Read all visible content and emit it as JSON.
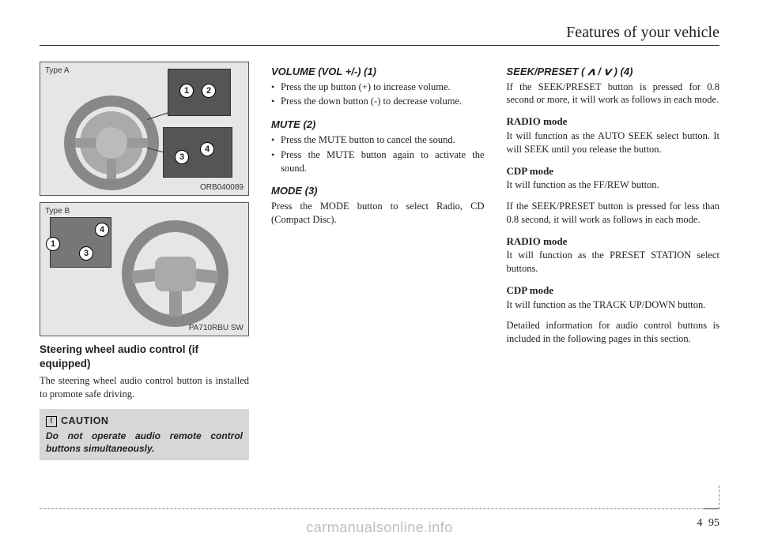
{
  "header": {
    "title": "Features of your vehicle"
  },
  "figures": {
    "a": {
      "type_label": "Type A",
      "code": "ORB040089",
      "callouts": {
        "n1": "1",
        "n2": "2",
        "n3": "3",
        "n4": "4"
      }
    },
    "b": {
      "type_label": "Type B",
      "code": "PA710RBU SW",
      "callouts": {
        "n1": "1",
        "n3": "3",
        "n4": "4"
      }
    }
  },
  "col1": {
    "heading": "Steering wheel audio control (if equipped)",
    "body": "The steering wheel audio control button is installed to promote safe driving.",
    "caution": {
      "label": "CAUTION",
      "text": "Do not operate audio remote control buttons simultaneously."
    }
  },
  "col2": {
    "s1": {
      "title": "VOLUME (VOL +/-) (1)",
      "items": [
        "Press the up button (+) to increase volume.",
        "Press the down button (-) to decrease volume."
      ]
    },
    "s2": {
      "title": "MUTE (2)",
      "items": [
        "Press the MUTE button to cancel the sound.",
        "Press the MUTE button again to activate the sound."
      ]
    },
    "s3": {
      "title": "MODE (3)",
      "body": "Press the MODE button to select Radio, CD (Compact Disc)."
    }
  },
  "col3": {
    "s1": {
      "title_pre": "SEEK/PRESET ( ",
      "title_mid": " / ",
      "title_post": " ) (4)",
      "body": "If the SEEK/PRESET button is pressed for 0.8 second or more, it will work as follows in each mode."
    },
    "r1": {
      "title": "RADIO mode",
      "body": "It will function as the AUTO SEEK select button. It will SEEK until you release the button."
    },
    "c1": {
      "title": "CDP mode",
      "body": "It will function as the FF/REW button."
    },
    "mid": "If the SEEK/PRESET button is pressed for less than 0.8 second, it will work as follows in each mode.",
    "r2": {
      "title": "RADIO mode",
      "body": "It will function as the PRESET STATION select buttons."
    },
    "c2": {
      "title": "CDP mode",
      "body": "It will function as the TRACK UP/DOWN button."
    },
    "tail": "Detailed information for audio control buttons is included in the following pages in this section."
  },
  "footer": {
    "section": "4",
    "page": "95"
  },
  "watermark": "carmanualsonline.info"
}
